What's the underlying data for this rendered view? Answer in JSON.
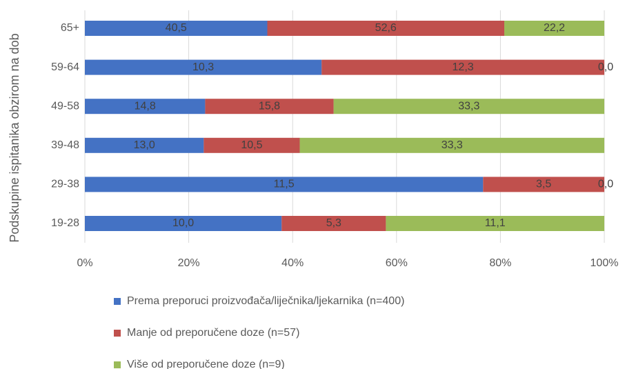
{
  "chart_data": {
    "type": "bar",
    "orientation": "horizontal",
    "stacked": "percent",
    "y_label": "Podskupine ispitanika obzirom na dob",
    "categories": [
      "65+",
      "59-64",
      "49-58",
      "39-48",
      "29-38",
      "19-28"
    ],
    "series": [
      {
        "name": "Prema preporuci proizvođača/liječnika/ljekarnika (n=400)",
        "color": "#4472c4",
        "values": [
          40.5,
          10.3,
          14.8,
          13.0,
          11.5,
          10.0
        ],
        "value_labels": [
          "40,5",
          "10,3",
          "14,8",
          "13,0",
          "11,5",
          "10,0"
        ]
      },
      {
        "name": "Manje od preporučene doze (n=57)",
        "color": "#c0504d",
        "values": [
          52.6,
          12.3,
          15.8,
          10.5,
          3.5,
          5.3
        ],
        "value_labels": [
          "52,6",
          "12,3",
          "15,8",
          "10,5",
          "3,5",
          "5,3"
        ]
      },
      {
        "name": "Više od preporučene doze (n=9)",
        "color": "#9bbb59",
        "values": [
          22.2,
          0.0,
          33.3,
          33.3,
          0.0,
          11.1
        ],
        "value_labels": [
          "22,2",
          "0,0",
          "33,3",
          "33,3",
          "0,0",
          "11,1"
        ]
      }
    ],
    "xlim": [
      0,
      100
    ],
    "xticks": [
      {
        "value": 0,
        "label": "0%"
      },
      {
        "value": 20,
        "label": "20%"
      },
      {
        "value": 40,
        "label": "40%"
      },
      {
        "value": 60,
        "label": "60%"
      },
      {
        "value": 80,
        "label": "80%"
      },
      {
        "value": 100,
        "label": "100%"
      }
    ],
    "grid": true,
    "legend": "bottom"
  }
}
